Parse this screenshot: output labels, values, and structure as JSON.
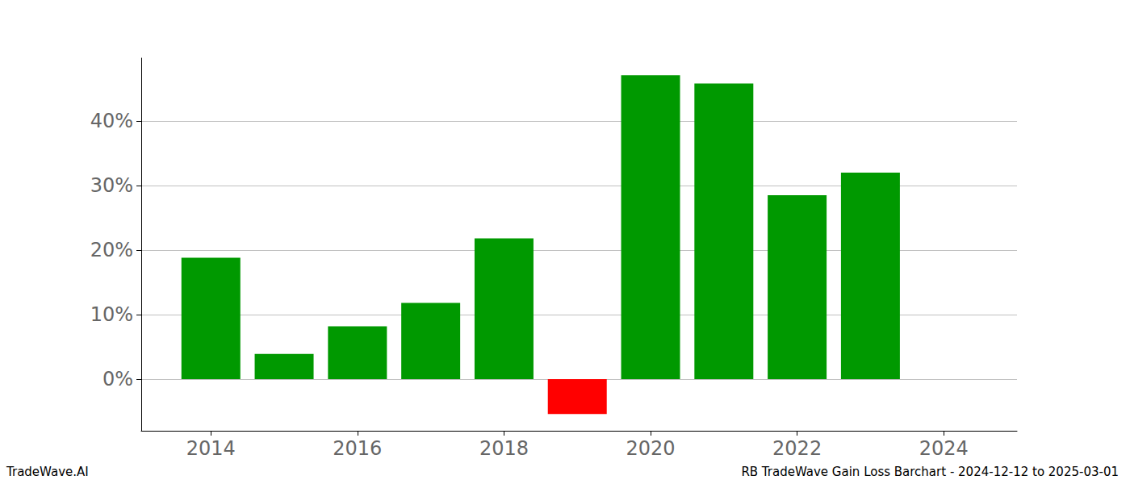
{
  "chart_data": {
    "type": "bar",
    "annotations": [
      "TradeWave.AI",
      "RB TradeWave Gain Loss Barchart - 2024-12-12 to 2025-03-01"
    ],
    "x": [
      2014,
      2015,
      2016,
      2017,
      2018,
      2019,
      2020,
      2021,
      2022,
      2023
    ],
    "values": [
      18.8,
      3.9,
      8.2,
      11.8,
      21.8,
      -5.4,
      47.1,
      45.8,
      28.5,
      32.0
    ],
    "colors": [
      "#009900",
      "#009900",
      "#009900",
      "#009900",
      "#009900",
      "#ff0000",
      "#009900",
      "#009900",
      "#009900",
      "#009900"
    ],
    "xlim": [
      2013.05,
      2025
    ],
    "xticks": [
      2014,
      2016,
      2018,
      2020,
      2022,
      2024
    ],
    "ylim": [
      -8,
      49.75
    ],
    "yticks": [
      {
        "value": 0,
        "label": "0%"
      },
      {
        "value": 10,
        "label": "10%"
      },
      {
        "value": 20,
        "label": "20%"
      },
      {
        "value": 30,
        "label": "30%"
      },
      {
        "value": 40,
        "label": "40%"
      }
    ],
    "grid": true
  }
}
